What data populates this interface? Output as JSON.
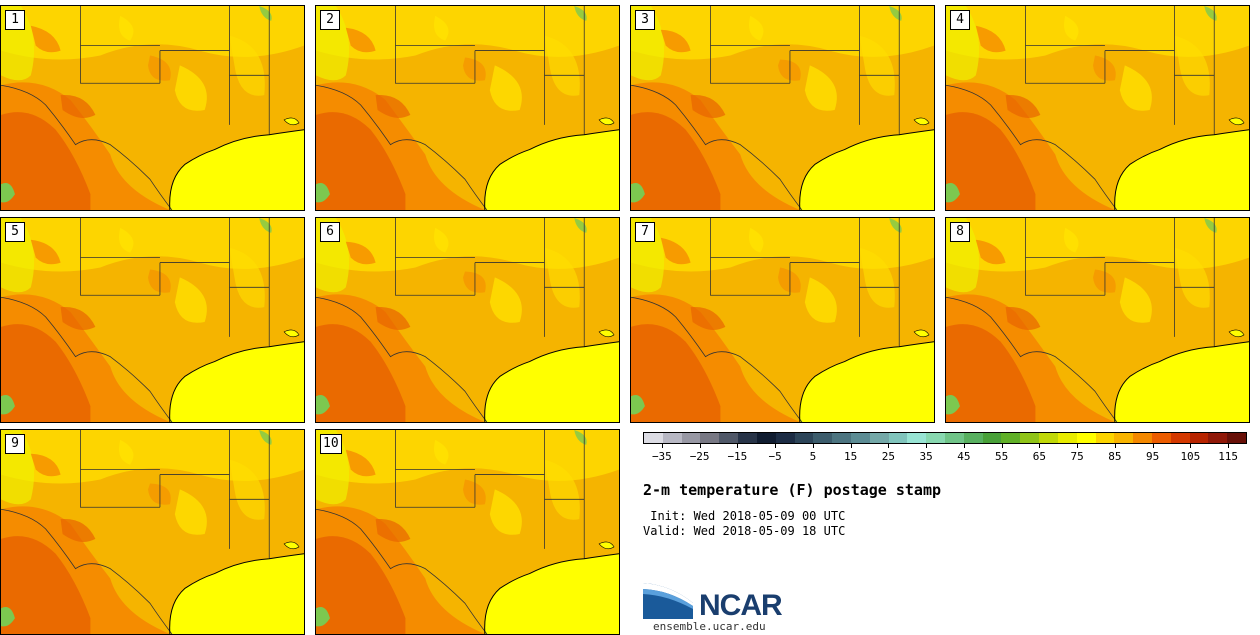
{
  "panels": [
    {
      "number": "1"
    },
    {
      "number": "2"
    },
    {
      "number": "3"
    },
    {
      "number": "4"
    },
    {
      "number": "5"
    },
    {
      "number": "6"
    },
    {
      "number": "7"
    },
    {
      "number": "8"
    },
    {
      "number": "9"
    },
    {
      "number": "10"
    }
  ],
  "map_colors": {
    "gulf": "#ffff00",
    "base": "#f5b400",
    "warm": "#f58c00",
    "hot": "#e86400",
    "cool": "#ffe000",
    "cooler": "#f0f000",
    "green": "#7cc850",
    "borders": "#333333"
  },
  "colorbar": {
    "colors": [
      "#dcdce4",
      "#b8b8c4",
      "#9898a4",
      "#787884",
      "#505868",
      "#283448",
      "#101c30",
      "#1c2c44",
      "#2c4458",
      "#3c5c6c",
      "#4c7480",
      "#5c8c94",
      "#74a8a8",
      "#80c4bc",
      "#98e4d4",
      "#88d8b0",
      "#70c488",
      "#58b060",
      "#48a038",
      "#60b028",
      "#90c418",
      "#c0d808",
      "#e8ec00",
      "#ffff00",
      "#fcd400",
      "#f8b400",
      "#f48800",
      "#ec5c00",
      "#d43800",
      "#b82400",
      "#901808",
      "#681008"
    ],
    "tick_labels": [
      "−35",
      "−25",
      "−15",
      "−5",
      "5",
      "15",
      "25",
      "35",
      "45",
      "55",
      "65",
      "75",
      "85",
      "95",
      "105",
      "115"
    ]
  },
  "title": "2-m temperature (F) postage stamp",
  "init": " Init: Wed 2018-05-09 00 UTC",
  "valid": "Valid: Wed 2018-05-09 18 UTC",
  "logo": {
    "wordmark": "NCAR",
    "url": "ensemble.ucar.edu",
    "colors": {
      "swoosh_dark": "#1a5a9a",
      "swoosh_light": "#5aa0dc",
      "text": "#1a3e6e"
    }
  }
}
